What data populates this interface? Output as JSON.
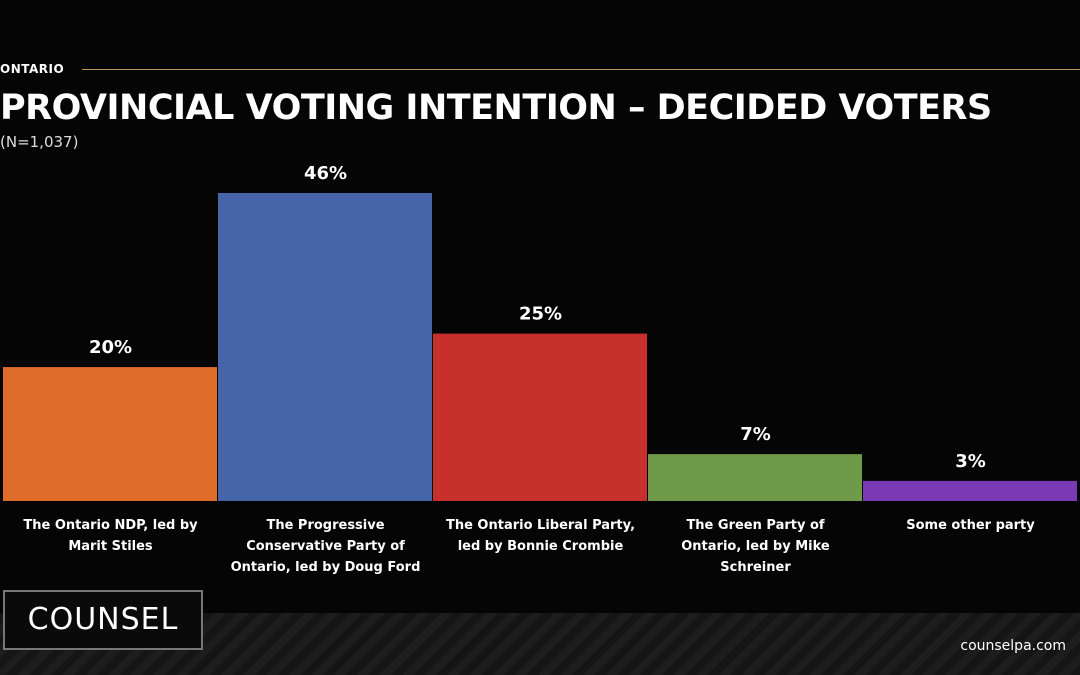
{
  "page": {
    "section": "ONTARIO",
    "logo": "COUNSEL",
    "website": "counselpa.com"
  },
  "chart_data": {
    "type": "bar",
    "title": "PROVINCIAL VOTING INTENTION – DECIDED VOTERS",
    "subtitle": "(N=1,037)",
    "categories": [
      "The Ontario NDP, led by Marit Stiles",
      "The Progressive Conservative Party of Ontario, led by Doug Ford",
      "The Ontario Liberal Party, led by Bonnie Crombie",
      "The Green Party of Ontario, led by Mike Schreiner",
      "Some other party"
    ],
    "values": [
      20,
      46,
      25,
      7,
      3
    ],
    "value_labels": [
      "20%",
      "46%",
      "25%",
      "7%",
      "3%"
    ],
    "colors": [
      "#e06c2b",
      "#4664a8",
      "#c8302c",
      "#6f9a4a",
      "#7a3ab5"
    ]
  }
}
